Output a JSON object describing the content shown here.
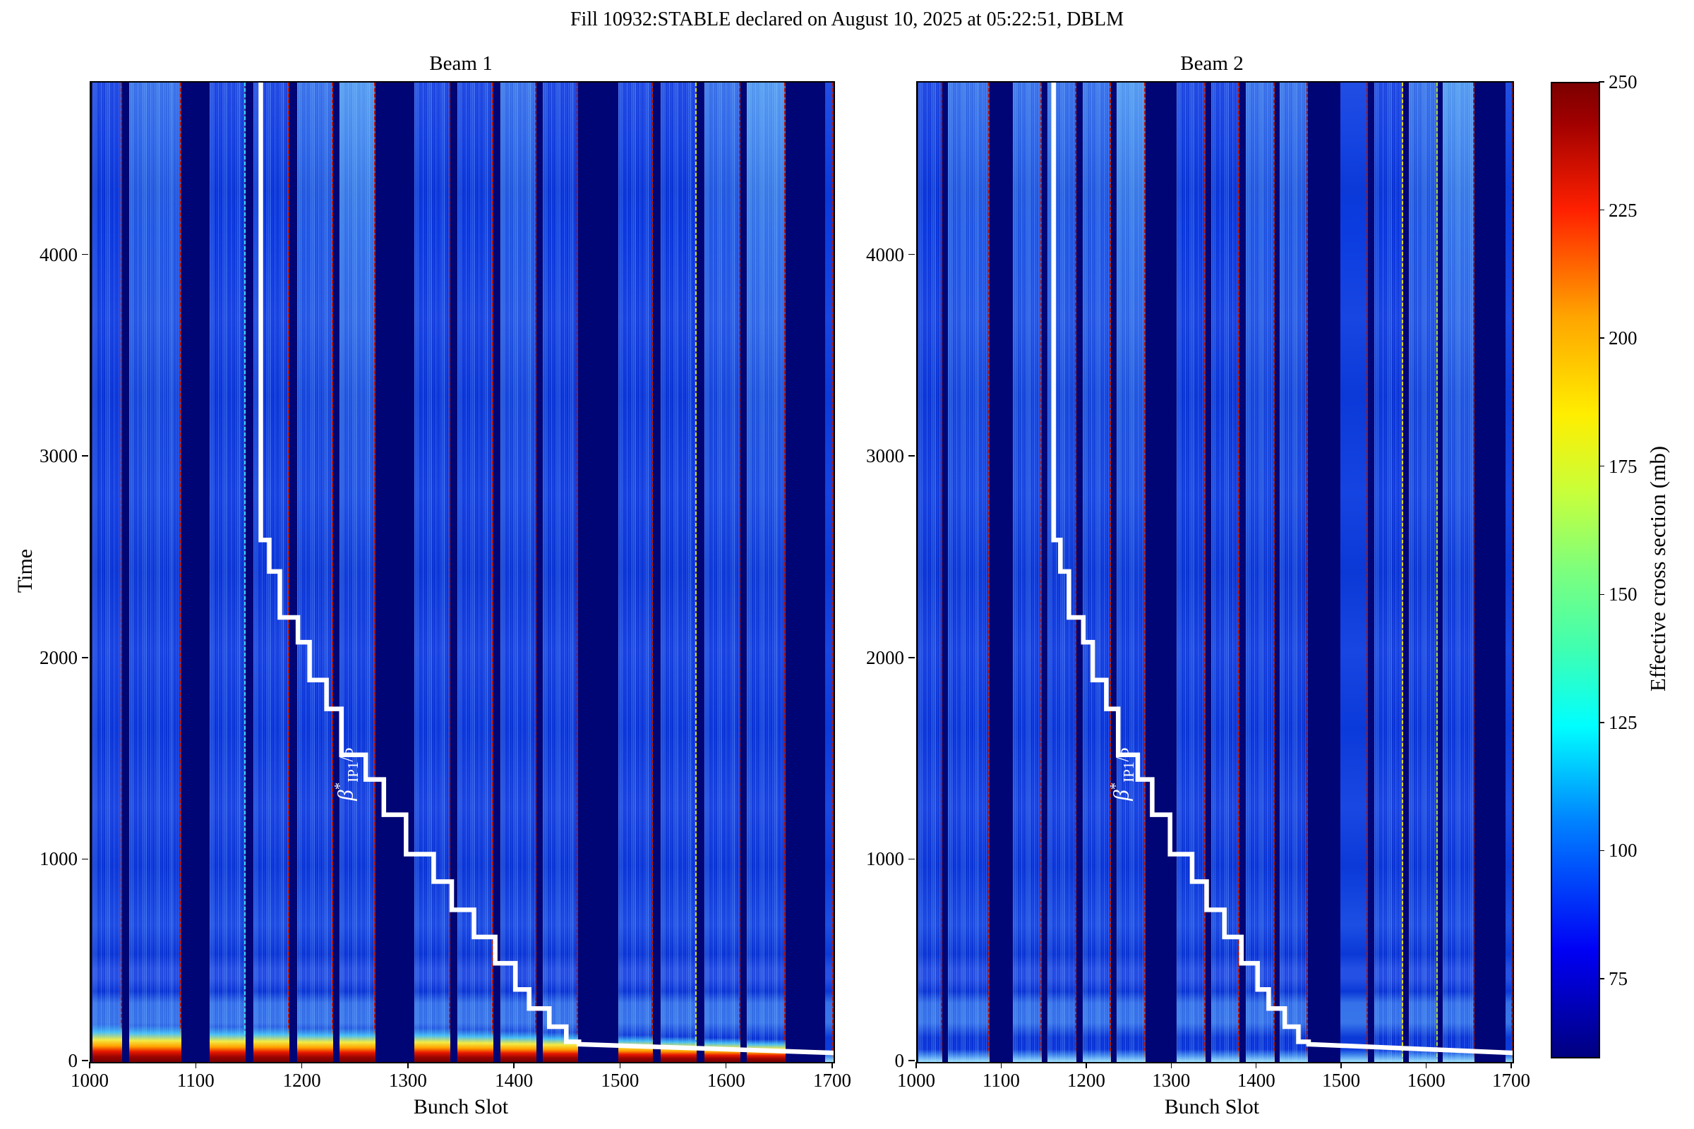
{
  "title": "Fill 10932:STABLE declared on August 10, 2025 at 05:22:51, DBLM",
  "colors": {
    "background": "#ffffff",
    "gap_fill": "#000575",
    "train_base": "#0837e8",
    "train_flat": "#0b3ce0",
    "edge_default": "#b01400",
    "staircase": "#ffffff",
    "hot_scale_bottom_to_top": [
      "#7a0000",
      "#e81800",
      "#ffa200",
      "#fff43c",
      "#5ae6ff"
    ],
    "glow": "#aee8ff",
    "colorbar_min_color": "#000080",
    "colorbar_max_color": "#7c0000"
  },
  "chart_data": {
    "type": "heatmap",
    "title": "Fill 10932:STABLE declared on August 10, 2025 at 05:22:51, DBLM",
    "colormap": "jet",
    "xlabel": "Bunch Slot",
    "ylabel": "Time",
    "x_range": [
      1000,
      1700
    ],
    "y_range": [
      0,
      4860
    ],
    "x_ticks": [
      1000,
      1100,
      1200,
      1300,
      1400,
      1500,
      1600,
      1700
    ],
    "y_ticks": [
      0,
      1000,
      2000,
      3000,
      4000
    ],
    "grid": false,
    "colorbar": {
      "label": "Effective cross section (mb)",
      "range": [
        60,
        250
      ],
      "ticks": [
        75,
        100,
        125,
        150,
        175,
        200,
        225,
        250
      ]
    },
    "beta_star": {
      "label_text": "β*IP1/5",
      "label_symbol": "β",
      "label_superscript": "*",
      "label_subscript": "IP1",
      "label_suffix": "/5",
      "label_position": [
        1241,
        1430
      ],
      "points": [
        [
          1160,
          4860
        ],
        [
          1160,
          2590
        ],
        [
          1168,
          2590
        ],
        [
          1168,
          2434
        ],
        [
          1178,
          2434
        ],
        [
          1178,
          2206
        ],
        [
          1195,
          2206
        ],
        [
          1195,
          2083
        ],
        [
          1206,
          2083
        ],
        [
          1206,
          1895
        ],
        [
          1222,
          1895
        ],
        [
          1222,
          1752
        ],
        [
          1236,
          1752
        ],
        [
          1236,
          1524
        ],
        [
          1259,
          1524
        ],
        [
          1259,
          1402
        ],
        [
          1276,
          1402
        ],
        [
          1276,
          1227
        ],
        [
          1297,
          1227
        ],
        [
          1297,
          1031
        ],
        [
          1323,
          1031
        ],
        [
          1323,
          895
        ],
        [
          1340,
          895
        ],
        [
          1340,
          755
        ],
        [
          1361,
          755
        ],
        [
          1361,
          620
        ],
        [
          1381,
          620
        ],
        [
          1381,
          490
        ],
        [
          1400,
          490
        ],
        [
          1400,
          360
        ],
        [
          1413,
          360
        ],
        [
          1413,
          265
        ],
        [
          1432,
          265
        ],
        [
          1432,
          175
        ],
        [
          1448,
          175
        ],
        [
          1448,
          100
        ],
        [
          1460,
          100
        ],
        [
          1460,
          88
        ],
        [
          1700,
          45
        ]
      ]
    },
    "panels": [
      {
        "name": "Beam 1",
        "trains": [
          {
            "s": 1001,
            "e": 1029,
            "hot": 36,
            "bright": 0
          },
          {
            "s": 1036,
            "e": 1085,
            "hot": 34,
            "bright": 1
          },
          {
            "s": 1112,
            "e": 1146,
            "hot": 32,
            "bright": 0,
            "edge": "#35d8ff"
          },
          {
            "s": 1153,
            "e": 1187,
            "hot": 32,
            "bright": 0
          },
          {
            "s": 1194,
            "e": 1228,
            "hot": 30,
            "bright": 1
          },
          {
            "s": 1234,
            "e": 1268,
            "hot": 30,
            "bright": 2
          },
          {
            "s": 1305,
            "e": 1339,
            "hot": 30,
            "bright": 0
          },
          {
            "s": 1345,
            "e": 1379,
            "hot": 28,
            "bright": 0
          },
          {
            "s": 1386,
            "e": 1420,
            "hot": 26,
            "bright": 1
          },
          {
            "s": 1426,
            "e": 1459,
            "hot": 24,
            "bright": 0
          },
          {
            "s": 1497,
            "e": 1530,
            "hot": 20,
            "bright": 0
          },
          {
            "s": 1537,
            "e": 1571,
            "hot": 18,
            "bright": 0,
            "edge": "#cfe000"
          },
          {
            "s": 1578,
            "e": 1612,
            "hot": 16,
            "bright": 1
          },
          {
            "s": 1618,
            "e": 1655,
            "hot": 14,
            "bright": 2
          },
          {
            "s": 1692,
            "e": 1700,
            "hot": 0,
            "glow": 10,
            "bright": 0,
            "flat": true
          }
        ]
      },
      {
        "name": "Beam 2",
        "trains": [
          {
            "s": 1001,
            "e": 1029,
            "glow": 12,
            "bright": 0
          },
          {
            "s": 1036,
            "e": 1085,
            "glow": 12,
            "bright": 1
          },
          {
            "s": 1112,
            "e": 1146,
            "glow": 12,
            "bright": 1
          },
          {
            "s": 1153,
            "e": 1187,
            "glow": 12,
            "bright": 1
          },
          {
            "s": 1194,
            "e": 1228,
            "glow": 12,
            "bright": 1
          },
          {
            "s": 1234,
            "e": 1268,
            "glow": 12,
            "bright": 2
          },
          {
            "s": 1305,
            "e": 1339,
            "glow": 12,
            "bright": 0
          },
          {
            "s": 1345,
            "e": 1379,
            "glow": 12,
            "bright": 0
          },
          {
            "s": 1386,
            "e": 1420,
            "glow": 12,
            "bright": 1
          },
          {
            "s": 1426,
            "e": 1459,
            "glow": 12,
            "bright": 1
          },
          {
            "s": 1497,
            "e": 1530,
            "glow": 12,
            "bright": 0,
            "flat": true
          },
          {
            "s": 1537,
            "e": 1571,
            "glow": 12,
            "bright": 0,
            "edge": "#e0d800"
          },
          {
            "s": 1578,
            "e": 1612,
            "glow": 12,
            "bright": 1,
            "edge": "#a8e000"
          },
          {
            "s": 1618,
            "e": 1655,
            "glow": 12,
            "bright": 2
          },
          {
            "s": 1692,
            "e": 1700,
            "glow": 8,
            "bright": 0,
            "flat": true
          }
        ]
      }
    ]
  }
}
